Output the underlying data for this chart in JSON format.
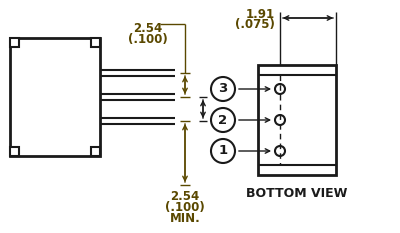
{
  "bg_color": "#ffffff",
  "line_color": "#1a1a1a",
  "dim_color": "#5a4800",
  "text_color": "#1a1a1a",
  "bottom_view_text": "BOTTOM VIEW",
  "dim1_top": "2.54",
  "dim1_bot": "(.100)",
  "dim2_top": "2.54",
  "dim2_bot": "(.100)",
  "dim2_extra": "MIN.",
  "dim3_top": "1.91",
  "dim3_bot": "(.075)"
}
